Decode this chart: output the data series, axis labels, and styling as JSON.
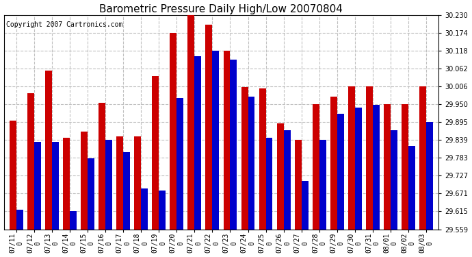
{
  "title": "Barometric Pressure Daily High/Low 20070804",
  "copyright": "Copyright 2007 Cartronics.com",
  "categories": [
    "07/11\n0",
    "07/12\n0",
    "07/13\n0",
    "07/14\n0",
    "07/15\n0",
    "07/16\n0",
    "07/17\n0",
    "07/18\n0",
    "07/19\n0",
    "07/20\n0",
    "07/21\n0",
    "07/22\n0",
    "07/23\n0",
    "07/24\n0",
    "07/25\n0",
    "07/26\n0",
    "07/27\n0",
    "07/28\n0",
    "07/29\n0",
    "07/30\n0",
    "07/31\n0",
    "08/01\n0",
    "08/02\n0",
    "08/03\n0"
  ],
  "highs": [
    29.9,
    29.985,
    30.055,
    29.845,
    29.865,
    29.955,
    29.85,
    29.85,
    30.038,
    30.174,
    30.23,
    30.2,
    30.118,
    30.005,
    30.0,
    29.89,
    29.84,
    29.95,
    29.975,
    30.006,
    30.006,
    29.95,
    29.95,
    30.006
  ],
  "lows": [
    29.62,
    29.833,
    29.833,
    29.615,
    29.78,
    29.84,
    29.8,
    29.686,
    29.68,
    29.97,
    30.1,
    30.118,
    30.09,
    29.975,
    29.845,
    29.87,
    29.71,
    29.84,
    29.92,
    29.94,
    29.948,
    29.87,
    29.82,
    29.895
  ],
  "high_color": "#cc0000",
  "low_color": "#0000cc",
  "bg_color": "#ffffff",
  "grid_color": "#c0c0c0",
  "title_fontsize": 11,
  "copyright_fontsize": 7,
  "tick_fontsize": 7,
  "ylim_min": 29.559,
  "ylim_max": 30.23,
  "yticks": [
    29.559,
    29.615,
    29.671,
    29.727,
    29.783,
    29.839,
    29.895,
    29.95,
    30.006,
    30.062,
    30.118,
    30.174,
    30.23
  ]
}
